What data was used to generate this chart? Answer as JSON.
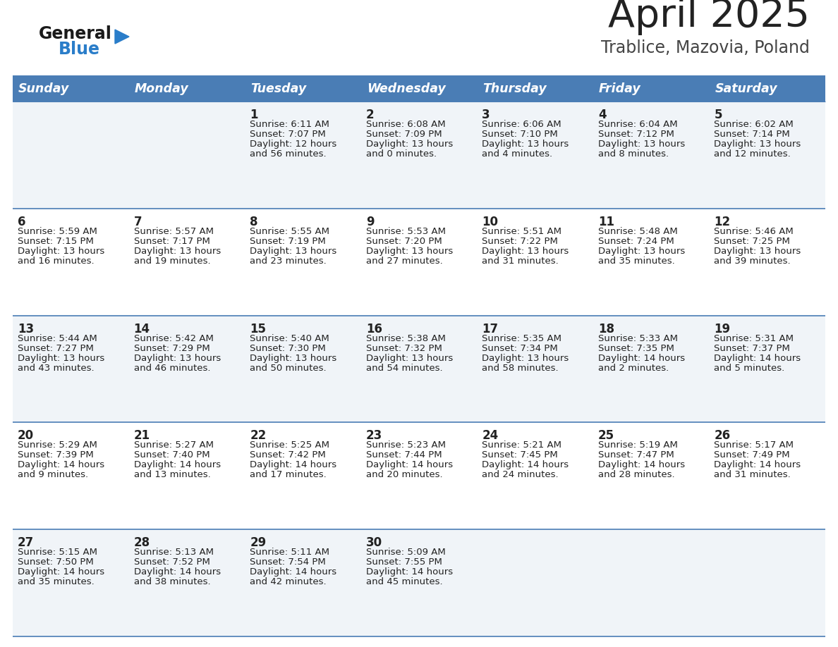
{
  "title": "April 2025",
  "subtitle": "Trablice, Mazovia, Poland",
  "header_bg_color": "#4a7db5",
  "header_text_color": "#ffffff",
  "day_names": [
    "Sunday",
    "Monday",
    "Tuesday",
    "Wednesday",
    "Thursday",
    "Friday",
    "Saturday"
  ],
  "row_bg_even": "#f0f4f8",
  "row_bg_odd": "#ffffff",
  "cell_text_color": "#222222",
  "grid_line_color": "#4a7db5",
  "title_color": "#222222",
  "subtitle_color": "#444444",
  "logo_general_color": "#1a1a1a",
  "logo_blue_color": "#2a7dc9",
  "weeks": [
    [
      {
        "day": "",
        "sunrise": "",
        "sunset": "",
        "daylight": ""
      },
      {
        "day": "",
        "sunrise": "",
        "sunset": "",
        "daylight": ""
      },
      {
        "day": "1",
        "sunrise": "Sunrise: 6:11 AM",
        "sunset": "Sunset: 7:07 PM",
        "daylight": "Daylight: 12 hours\nand 56 minutes."
      },
      {
        "day": "2",
        "sunrise": "Sunrise: 6:08 AM",
        "sunset": "Sunset: 7:09 PM",
        "daylight": "Daylight: 13 hours\nand 0 minutes."
      },
      {
        "day": "3",
        "sunrise": "Sunrise: 6:06 AM",
        "sunset": "Sunset: 7:10 PM",
        "daylight": "Daylight: 13 hours\nand 4 minutes."
      },
      {
        "day": "4",
        "sunrise": "Sunrise: 6:04 AM",
        "sunset": "Sunset: 7:12 PM",
        "daylight": "Daylight: 13 hours\nand 8 minutes."
      },
      {
        "day": "5",
        "sunrise": "Sunrise: 6:02 AM",
        "sunset": "Sunset: 7:14 PM",
        "daylight": "Daylight: 13 hours\nand 12 minutes."
      }
    ],
    [
      {
        "day": "6",
        "sunrise": "Sunrise: 5:59 AM",
        "sunset": "Sunset: 7:15 PM",
        "daylight": "Daylight: 13 hours\nand 16 minutes."
      },
      {
        "day": "7",
        "sunrise": "Sunrise: 5:57 AM",
        "sunset": "Sunset: 7:17 PM",
        "daylight": "Daylight: 13 hours\nand 19 minutes."
      },
      {
        "day": "8",
        "sunrise": "Sunrise: 5:55 AM",
        "sunset": "Sunset: 7:19 PM",
        "daylight": "Daylight: 13 hours\nand 23 minutes."
      },
      {
        "day": "9",
        "sunrise": "Sunrise: 5:53 AM",
        "sunset": "Sunset: 7:20 PM",
        "daylight": "Daylight: 13 hours\nand 27 minutes."
      },
      {
        "day": "10",
        "sunrise": "Sunrise: 5:51 AM",
        "sunset": "Sunset: 7:22 PM",
        "daylight": "Daylight: 13 hours\nand 31 minutes."
      },
      {
        "day": "11",
        "sunrise": "Sunrise: 5:48 AM",
        "sunset": "Sunset: 7:24 PM",
        "daylight": "Daylight: 13 hours\nand 35 minutes."
      },
      {
        "day": "12",
        "sunrise": "Sunrise: 5:46 AM",
        "sunset": "Sunset: 7:25 PM",
        "daylight": "Daylight: 13 hours\nand 39 minutes."
      }
    ],
    [
      {
        "day": "13",
        "sunrise": "Sunrise: 5:44 AM",
        "sunset": "Sunset: 7:27 PM",
        "daylight": "Daylight: 13 hours\nand 43 minutes."
      },
      {
        "day": "14",
        "sunrise": "Sunrise: 5:42 AM",
        "sunset": "Sunset: 7:29 PM",
        "daylight": "Daylight: 13 hours\nand 46 minutes."
      },
      {
        "day": "15",
        "sunrise": "Sunrise: 5:40 AM",
        "sunset": "Sunset: 7:30 PM",
        "daylight": "Daylight: 13 hours\nand 50 minutes."
      },
      {
        "day": "16",
        "sunrise": "Sunrise: 5:38 AM",
        "sunset": "Sunset: 7:32 PM",
        "daylight": "Daylight: 13 hours\nand 54 minutes."
      },
      {
        "day": "17",
        "sunrise": "Sunrise: 5:35 AM",
        "sunset": "Sunset: 7:34 PM",
        "daylight": "Daylight: 13 hours\nand 58 minutes."
      },
      {
        "day": "18",
        "sunrise": "Sunrise: 5:33 AM",
        "sunset": "Sunset: 7:35 PM",
        "daylight": "Daylight: 14 hours\nand 2 minutes."
      },
      {
        "day": "19",
        "sunrise": "Sunrise: 5:31 AM",
        "sunset": "Sunset: 7:37 PM",
        "daylight": "Daylight: 14 hours\nand 5 minutes."
      }
    ],
    [
      {
        "day": "20",
        "sunrise": "Sunrise: 5:29 AM",
        "sunset": "Sunset: 7:39 PM",
        "daylight": "Daylight: 14 hours\nand 9 minutes."
      },
      {
        "day": "21",
        "sunrise": "Sunrise: 5:27 AM",
        "sunset": "Sunset: 7:40 PM",
        "daylight": "Daylight: 14 hours\nand 13 minutes."
      },
      {
        "day": "22",
        "sunrise": "Sunrise: 5:25 AM",
        "sunset": "Sunset: 7:42 PM",
        "daylight": "Daylight: 14 hours\nand 17 minutes."
      },
      {
        "day": "23",
        "sunrise": "Sunrise: 5:23 AM",
        "sunset": "Sunset: 7:44 PM",
        "daylight": "Daylight: 14 hours\nand 20 minutes."
      },
      {
        "day": "24",
        "sunrise": "Sunrise: 5:21 AM",
        "sunset": "Sunset: 7:45 PM",
        "daylight": "Daylight: 14 hours\nand 24 minutes."
      },
      {
        "day": "25",
        "sunrise": "Sunrise: 5:19 AM",
        "sunset": "Sunset: 7:47 PM",
        "daylight": "Daylight: 14 hours\nand 28 minutes."
      },
      {
        "day": "26",
        "sunrise": "Sunrise: 5:17 AM",
        "sunset": "Sunset: 7:49 PM",
        "daylight": "Daylight: 14 hours\nand 31 minutes."
      }
    ],
    [
      {
        "day": "27",
        "sunrise": "Sunrise: 5:15 AM",
        "sunset": "Sunset: 7:50 PM",
        "daylight": "Daylight: 14 hours\nand 35 minutes."
      },
      {
        "day": "28",
        "sunrise": "Sunrise: 5:13 AM",
        "sunset": "Sunset: 7:52 PM",
        "daylight": "Daylight: 14 hours\nand 38 minutes."
      },
      {
        "day": "29",
        "sunrise": "Sunrise: 5:11 AM",
        "sunset": "Sunset: 7:54 PM",
        "daylight": "Daylight: 14 hours\nand 42 minutes."
      },
      {
        "day": "30",
        "sunrise": "Sunrise: 5:09 AM",
        "sunset": "Sunset: 7:55 PM",
        "daylight": "Daylight: 14 hours\nand 45 minutes."
      },
      {
        "day": "",
        "sunrise": "",
        "sunset": "",
        "daylight": ""
      },
      {
        "day": "",
        "sunrise": "",
        "sunset": "",
        "daylight": ""
      },
      {
        "day": "",
        "sunrise": "",
        "sunset": "",
        "daylight": ""
      }
    ]
  ]
}
